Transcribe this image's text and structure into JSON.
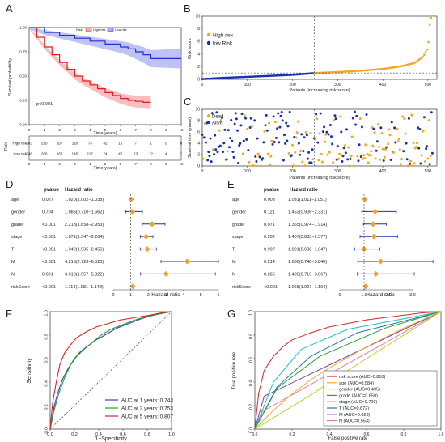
{
  "panels": {
    "A": "A",
    "B": "B",
    "C": "C",
    "D": "D",
    "E": "E",
    "F": "F",
    "G": "G"
  },
  "colors": {
    "high": "#e31a1c",
    "high_band": "#f4a9a9",
    "low": "#1f2fd0",
    "low_band": "#a9aef2",
    "orange": "#f5a623",
    "navy": "#1a2fb0",
    "grey": "#555555",
    "red": "#d7191c"
  },
  "chart_data": [
    {
      "panel": "A",
      "type": "line",
      "title": "",
      "xlabel": "Time(years)",
      "ylabel": "Survival probability",
      "xlim": [
        0,
        10
      ],
      "ylim": [
        0,
        1
      ],
      "xticks": [
        0,
        1,
        2,
        3,
        4,
        5,
        6,
        7,
        8,
        9,
        10
      ],
      "yticks": [
        "0.00",
        "0.25",
        "0.50",
        "0.75",
        "1.00"
      ],
      "legend": {
        "title": "Risk",
        "items": [
          "High risk",
          "Low risk"
        ]
      },
      "annotation": "p<0.001",
      "series": [
        {
          "name": "High risk",
          "x": [
            0,
            0.5,
            1,
            1.5,
            2,
            2.5,
            3,
            3.5,
            4,
            4.5,
            5,
            5.5,
            6,
            6.5,
            7,
            7.5,
            8
          ],
          "y": [
            1.0,
            0.9,
            0.8,
            0.72,
            0.64,
            0.57,
            0.5,
            0.45,
            0.41,
            0.37,
            0.33,
            0.3,
            0.27,
            0.25,
            0.24,
            0.23,
            0.23
          ]
        },
        {
          "name": "Low risk",
          "x": [
            0,
            1,
            2,
            3,
            4,
            5,
            6,
            6.5,
            7,
            7.5,
            8,
            9,
            10
          ],
          "y": [
            1.0,
            0.95,
            0.92,
            0.89,
            0.86,
            0.83,
            0.8,
            0.78,
            0.75,
            0.72,
            0.68,
            0.68,
            0.68
          ]
        }
      ],
      "risk_table": {
        "xlabel": "Time(years)",
        "ylabel": "Risk",
        "rows": [
          {
            "name": "High risk",
            "values": [
              263,
              210,
              157,
              118,
              73,
              42,
              15,
              7,
              1,
              0,
              0
            ]
          },
          {
            "name": "Low risk",
            "values": [
              248,
              206,
              166,
              145,
              117,
              74,
              47,
              23,
              12,
              4,
              1
            ]
          }
        ]
      }
    },
    {
      "panel": "B",
      "type": "scatter",
      "xlabel": "Patients (increasing risk score)",
      "ylabel": "Risk score",
      "xlim": [
        0,
        520
      ],
      "ylim": [
        0,
        10
      ],
      "xticks": [
        0,
        100,
        200,
        300,
        400,
        500
      ],
      "yticks": [
        0,
        2,
        4,
        6,
        8,
        10
      ],
      "cutoff_index": 248,
      "cutoff_score": 1.0,
      "legend": [
        "High risk",
        "low Risk"
      ],
      "low_risk_curve": {
        "x": [
          0,
          50,
          100,
          150,
          200,
          248
        ],
        "y": [
          0.05,
          0.25,
          0.4,
          0.55,
          0.72,
          0.98
        ]
      },
      "high_risk_curve": {
        "x": [
          249,
          300,
          350,
          400,
          440,
          470,
          490,
          500,
          505,
          511
        ],
        "y": [
          1.0,
          1.15,
          1.35,
          1.65,
          2.05,
          2.6,
          3.6,
          5.0,
          9.5,
          10.2
        ]
      }
    },
    {
      "panel": "C",
      "type": "scatter",
      "xlabel": "Patients (increasing risk score)",
      "ylabel": "Survival time (years)",
      "xlim": [
        0,
        520
      ],
      "ylim": [
        0,
        10
      ],
      "xticks": [
        0,
        100,
        200,
        300,
        400,
        500
      ],
      "yticks": [
        0,
        2,
        4,
        6,
        8,
        10
      ],
      "legend": [
        "Dead",
        "Alive"
      ],
      "points": "approximately 511 patients, time spread 0-10 years; Dead more frequent at high risk"
    },
    {
      "panel": "D",
      "type": "forest",
      "title": "",
      "col_pvalue": "pvalue",
      "col_hr": "Hazard ratio",
      "xlabel": "Hazard ratio",
      "xlim": [
        0,
        6
      ],
      "xticks": [
        0,
        1,
        2,
        3,
        4,
        5,
        6
      ],
      "rows": [
        {
          "name": "age",
          "p": "0.027",
          "hr_text": "1.020(1.002−1.038)",
          "hr": 1.02,
          "lo": 1.002,
          "hi": 1.038
        },
        {
          "name": "gender",
          "p": "0.704",
          "hr_text": "1.086(0.710−1.662)",
          "hr": 1.086,
          "lo": 0.71,
          "hi": 1.662
        },
        {
          "name": "grade",
          "p": "<0.001",
          "hr_text": "2.213(1.658−2.953)",
          "hr": 2.213,
          "lo": 1.658,
          "hi": 2.953
        },
        {
          "name": "stage",
          "p": "<0.001",
          "hr_text": "1.871(1.547−2.264)",
          "hr": 1.871,
          "lo": 1.547,
          "hi": 2.264
        },
        {
          "name": "T",
          "p": "<0.001",
          "hr_text": "1.942(1.535−2.456)",
          "hr": 1.942,
          "lo": 1.535,
          "hi": 2.456
        },
        {
          "name": "M",
          "p": "<0.001",
          "hr_text": "4.216(2.723−6.528)",
          "hr": 4.216,
          "lo": 2.723,
          "hi": 6.528
        },
        {
          "name": "N",
          "p": "0.001",
          "hr_text": "3.010(1.557−5.822)",
          "hr": 3.01,
          "lo": 1.557,
          "hi": 5.822
        },
        {
          "name": "riskScore",
          "p": "<0.001",
          "hr_text": "1.114(1.081−1.148)",
          "hr": 1.114,
          "lo": 1.081,
          "hi": 1.148
        }
      ]
    },
    {
      "panel": "E",
      "type": "forest",
      "title": "",
      "col_pvalue": "pvalue",
      "col_hr": "Hazard ratio",
      "xlabel": "Hazard ratio",
      "xlim": [
        0,
        4
      ],
      "xticks": [
        "0",
        "1.0",
        "2.0",
        "3.0"
      ],
      "rows": [
        {
          "name": "age",
          "p": "0.003",
          "hr_text": "1.031(1.011−1.051)",
          "hr": 1.031,
          "lo": 1.011,
          "hi": 1.051
        },
        {
          "name": "gender",
          "p": "0.121",
          "hr_text": "1.453(0.906−2.331)",
          "hr": 1.453,
          "lo": 0.906,
          "hi": 2.331
        },
        {
          "name": "grade",
          "p": "0.071",
          "hr_text": "1.365(0.974−1.914)",
          "hr": 1.365,
          "lo": 0.974,
          "hi": 1.914
        },
        {
          "name": "stage",
          "p": "0.202",
          "hr_text": "1.407(0.833−2.377)",
          "hr": 1.407,
          "lo": 0.833,
          "hi": 2.377
        },
        {
          "name": "T",
          "p": "0.997",
          "hr_text": "1.001(0.608−1.647)",
          "hr": 1.001,
          "lo": 0.608,
          "hi": 1.647
        },
        {
          "name": "M",
          "p": "0.214",
          "hr_text": "1.686(0.740−3.840)",
          "hr": 1.686,
          "lo": 0.74,
          "hi": 3.84
        },
        {
          "name": "N",
          "p": "0.285",
          "hr_text": "1.485(0.719−3.067)",
          "hr": 1.485,
          "lo": 0.719,
          "hi": 3.067
        },
        {
          "name": "riskScore",
          "p": "<0.001",
          "hr_text": "1.065(1.027−1.104)",
          "hr": 1.065,
          "lo": 1.027,
          "hi": 1.104
        }
      ]
    },
    {
      "panel": "F",
      "type": "line",
      "xlabel": "1−Specificity",
      "ylabel": "Sensitivity",
      "xlim": [
        0,
        1
      ],
      "ylim": [
        0,
        1
      ],
      "xticks": [
        "0.0",
        "0.2",
        "0.4",
        "0.6",
        "0.8",
        "1.0"
      ],
      "yticks": [
        "0.0",
        "0.2",
        "0.4",
        "0.6",
        "0.8",
        "1.0"
      ],
      "series": [
        {
          "name": "AUC at 1 years: 0.743",
          "color": "#3a3adb",
          "x": [
            0,
            0.03,
            0.06,
            0.1,
            0.15,
            0.2,
            0.25,
            0.3,
            0.38,
            0.45,
            0.55,
            0.65,
            0.75,
            0.85,
            0.93,
            1
          ],
          "y": [
            0,
            0.18,
            0.3,
            0.42,
            0.52,
            0.6,
            0.66,
            0.7,
            0.76,
            0.8,
            0.86,
            0.9,
            0.94,
            0.97,
            0.99,
            1
          ]
        },
        {
          "name": "AUC at 3 years: 0.753",
          "color": "#2ca02c",
          "x": [
            0,
            0.03,
            0.07,
            0.12,
            0.17,
            0.22,
            0.28,
            0.35,
            0.42,
            0.5,
            0.6,
            0.7,
            0.8,
            0.9,
            1
          ],
          "y": [
            0,
            0.15,
            0.3,
            0.44,
            0.55,
            0.62,
            0.68,
            0.74,
            0.8,
            0.85,
            0.89,
            0.93,
            0.96,
            0.98,
            1
          ]
        },
        {
          "name": "AUC at 5 years: 0.807",
          "color": "#d62728",
          "x": [
            0,
            0.02,
            0.05,
            0.08,
            0.12,
            0.17,
            0.22,
            0.3,
            0.38,
            0.48,
            0.58,
            0.7,
            0.82,
            0.92,
            1
          ],
          "y": [
            0,
            0.22,
            0.4,
            0.55,
            0.65,
            0.72,
            0.78,
            0.83,
            0.87,
            0.9,
            0.93,
            0.95,
            0.97,
            0.99,
            1
          ]
        }
      ]
    },
    {
      "panel": "G",
      "type": "line",
      "xlabel": "False positive rate",
      "ylabel": "True positive rate",
      "xlim": [
        0,
        1
      ],
      "ylim": [
        0,
        1
      ],
      "xticks": [
        "0.0",
        "0.2",
        "0.4",
        "0.6",
        "0.8",
        "1.0"
      ],
      "yticks": [
        "0.0",
        "0.2",
        "0.4",
        "0.6",
        "0.8",
        "1.0"
      ],
      "series": [
        {
          "name": "risk score (AUC=0.810)",
          "color": "#d62728",
          "x": [
            0,
            0.02,
            0.05,
            0.1,
            0.15,
            0.2,
            0.3,
            0.4,
            0.5,
            0.6,
            0.7,
            0.8,
            0.9,
            1
          ],
          "y": [
            0,
            0.3,
            0.5,
            0.62,
            0.7,
            0.76,
            0.82,
            0.87,
            0.9,
            0.93,
            0.95,
            0.97,
            0.99,
            1
          ]
        },
        {
          "name": "age (AUC=0.584)",
          "color": "#e8b31a",
          "x": [
            0,
            0.1,
            0.2,
            0.3,
            0.4,
            0.5,
            0.6,
            0.7,
            0.8,
            0.9,
            1
          ],
          "y": [
            0,
            0.16,
            0.3,
            0.42,
            0.52,
            0.61,
            0.7,
            0.78,
            0.86,
            0.93,
            1
          ]
        },
        {
          "name": "gender (AUC=0.495)",
          "color": "#b8d11f",
          "x": [
            0,
            0.3,
            0.5,
            1
          ],
          "y": [
            0,
            0.29,
            0.5,
            1
          ]
        },
        {
          "name": "grade (AUC=0.659)",
          "color": "#2ca02c",
          "x": [
            0,
            0.12,
            0.35,
            0.7,
            1
          ],
          "y": [
            0,
            0.35,
            0.62,
            0.86,
            1
          ]
        },
        {
          "name": "stage (AUC=0.709)",
          "color": "#1fbfbf",
          "x": [
            0,
            0.1,
            0.25,
            0.5,
            1
          ],
          "y": [
            0,
            0.4,
            0.68,
            0.85,
            1
          ]
        },
        {
          "name": "T (AUC=0.672)",
          "color": "#1f77b4",
          "x": [
            0,
            0.12,
            0.3,
            0.55,
            1
          ],
          "y": [
            0,
            0.36,
            0.62,
            0.82,
            1
          ]
        },
        {
          "name": "M (AUC=0.623)",
          "color": "#7b3fb0",
          "x": [
            0,
            0.05,
            1
          ],
          "y": [
            0,
            0.28,
            1
          ]
        },
        {
          "name": "N (AUC=0.553)",
          "color": "#e377c2",
          "x": [
            0,
            0.04,
            1
          ],
          "y": [
            0,
            0.15,
            1
          ]
        }
      ]
    }
  ]
}
